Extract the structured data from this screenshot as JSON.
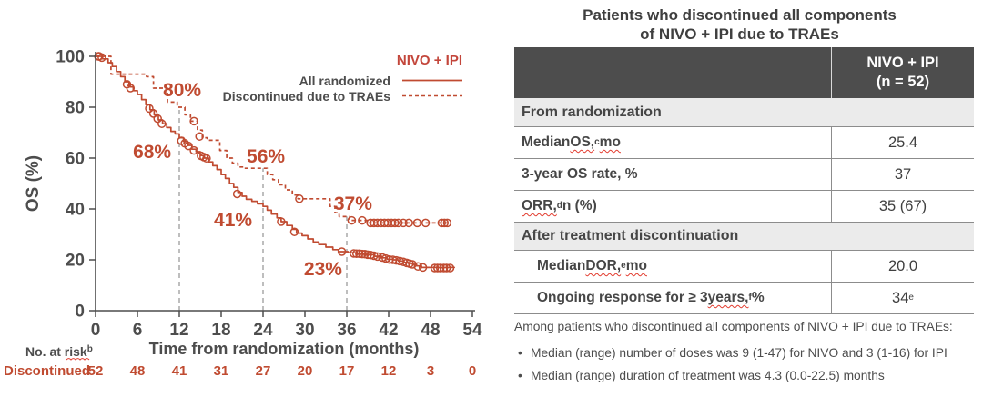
{
  "colors": {
    "accent": "#c04b31",
    "legend_title": "#c3463b",
    "axis_text": "#4d4d4d",
    "ref_line": "#9b9b9b",
    "squiggle": "#e23b2e",
    "header_bg": "#4d4d4d",
    "header_text": "#ffffff",
    "section_bg": "#ebebeb",
    "border": "#8c8c8c",
    "table_text": "#464646"
  },
  "chart_data": {
    "type": "line",
    "subtype": "kaplan-meier",
    "xlabel": "Time from randomization (months)",
    "ylabel": "OS (%)",
    "xlim": [
      0,
      54
    ],
    "ylim": [
      0,
      100
    ],
    "xticks": [
      0,
      6,
      12,
      18,
      24,
      30,
      36,
      42,
      48,
      54
    ],
    "yticks": [
      0,
      20,
      40,
      60,
      80,
      100
    ],
    "grid": false,
    "legend_title": "NIVO + IPI",
    "legend_position": "top-right",
    "series": [
      {
        "name": "All randomized",
        "style": "solid",
        "points": [
          [
            0,
            100
          ],
          [
            1,
            99
          ],
          [
            1.8,
            97.5
          ],
          [
            2.4,
            96
          ],
          [
            3,
            94
          ],
          [
            3.6,
            92
          ],
          [
            4.2,
            90
          ],
          [
            4.8,
            88
          ],
          [
            5.4,
            86.5
          ],
          [
            6,
            85
          ],
          [
            6.6,
            83
          ],
          [
            7.2,
            81
          ],
          [
            7.8,
            79
          ],
          [
            8.4,
            77
          ],
          [
            9,
            75
          ],
          [
            9.6,
            73.5
          ],
          [
            10.2,
            72
          ],
          [
            10.8,
            70.5
          ],
          [
            11.4,
            69.5
          ],
          [
            12,
            68
          ],
          [
            12.6,
            66.5
          ],
          [
            13.2,
            65
          ],
          [
            13.8,
            63.5
          ],
          [
            14.4,
            62.5
          ],
          [
            15,
            61
          ],
          [
            15.6,
            60
          ],
          [
            16.2,
            58.5
          ],
          [
            16.8,
            57
          ],
          [
            17.4,
            55.5
          ],
          [
            18,
            53.5
          ],
          [
            18.6,
            52
          ],
          [
            19.2,
            50
          ],
          [
            19.8,
            48.5
          ],
          [
            20.4,
            46.5
          ],
          [
            21,
            45
          ],
          [
            21.6,
            43.8
          ],
          [
            22.4,
            43
          ],
          [
            23.2,
            42
          ],
          [
            24,
            41
          ],
          [
            24.6,
            39.5
          ],
          [
            25.2,
            38
          ],
          [
            26,
            36.5
          ],
          [
            26.6,
            35
          ],
          [
            27.4,
            33.5
          ],
          [
            28.2,
            32
          ],
          [
            28.8,
            30.5
          ],
          [
            29.6,
            29.5
          ],
          [
            30.4,
            28.2
          ],
          [
            31.2,
            27
          ],
          [
            32,
            26
          ],
          [
            33,
            25
          ],
          [
            34,
            24
          ],
          [
            34.8,
            23.2
          ],
          [
            36.2,
            22.8
          ],
          [
            37.4,
            22.4
          ],
          [
            38.6,
            22
          ],
          [
            40,
            21.4
          ],
          [
            41,
            20.8
          ],
          [
            41.8,
            20.2
          ],
          [
            42.6,
            20
          ],
          [
            43.4,
            19.5
          ],
          [
            44.2,
            19
          ],
          [
            44.8,
            18.6
          ],
          [
            45.4,
            18.2
          ],
          [
            46,
            17.6
          ],
          [
            46.6,
            17
          ],
          [
            51.4,
            16.8
          ]
        ],
        "censors": [
          [
            0.4,
            100
          ],
          [
            0.9,
            99.5
          ],
          [
            4.5,
            89
          ],
          [
            5,
            87.5
          ],
          [
            7.7,
            79.5
          ],
          [
            8.3,
            77.5
          ],
          [
            8.9,
            75.5
          ],
          [
            9.5,
            73.5
          ],
          [
            12.3,
            66.8
          ],
          [
            12.8,
            65.8
          ],
          [
            13.3,
            64.8
          ],
          [
            14.1,
            63
          ],
          [
            15.1,
            60.9
          ],
          [
            15.5,
            60.4
          ],
          [
            15.9,
            59.9
          ],
          [
            20.3,
            45.9
          ],
          [
            26.6,
            35
          ],
          [
            28.5,
            31
          ],
          [
            35.3,
            23.2
          ],
          [
            37,
            22.5
          ],
          [
            37.4,
            22.4
          ],
          [
            37.8,
            22.4
          ],
          [
            38.2,
            22.3
          ],
          [
            38.6,
            22.2
          ],
          [
            39,
            22
          ],
          [
            39.4,
            21.9
          ],
          [
            39.9,
            21.6
          ],
          [
            40.4,
            21.3
          ],
          [
            41.1,
            20.9
          ],
          [
            41.6,
            20.5
          ],
          [
            42.1,
            20.1
          ],
          [
            42.6,
            20
          ],
          [
            43.1,
            19.8
          ],
          [
            43.6,
            19.5
          ],
          [
            44.1,
            19.2
          ],
          [
            44.6,
            18.8
          ],
          [
            45,
            18.5
          ],
          [
            45.4,
            18.2
          ],
          [
            46.2,
            17.4
          ],
          [
            46.9,
            17
          ],
          [
            48.6,
            16.8
          ],
          [
            49,
            16.8
          ],
          [
            49.4,
            16.8
          ],
          [
            49.9,
            16.8
          ],
          [
            50.3,
            16.8
          ],
          [
            50.8,
            16.8
          ]
        ],
        "milestone_values": {
          "12": 68,
          "24": 41,
          "36": 23
        }
      },
      {
        "name": "Discontinued due to TRAEs",
        "style": "dashed",
        "points": [
          [
            0,
            100
          ],
          [
            2.2,
            93
          ],
          [
            7.3,
            92
          ],
          [
            8.3,
            87.5
          ],
          [
            10.3,
            82
          ],
          [
            11.7,
            80
          ],
          [
            12.8,
            77
          ],
          [
            13.6,
            74.5
          ],
          [
            14.6,
            71
          ],
          [
            15.3,
            68
          ],
          [
            16,
            67
          ],
          [
            17.8,
            63
          ],
          [
            18.8,
            60
          ],
          [
            19.6,
            58
          ],
          [
            20.4,
            56.5
          ],
          [
            21.2,
            56
          ],
          [
            24.6,
            53.5
          ],
          [
            25.4,
            51.5
          ],
          [
            26.2,
            49.5
          ],
          [
            27.2,
            47.5
          ],
          [
            28.2,
            45.5
          ],
          [
            29,
            44
          ],
          [
            33.6,
            41
          ],
          [
            34.3,
            38.5
          ],
          [
            34.9,
            37
          ],
          [
            36.4,
            35.5
          ],
          [
            39,
            34.5
          ],
          [
            50.6,
            34.5
          ]
        ],
        "censors": [
          [
            0.5,
            100
          ],
          [
            14.1,
            74.5
          ],
          [
            14.9,
            68.5
          ],
          [
            29.2,
            44
          ],
          [
            36.7,
            35.5
          ],
          [
            38.2,
            35.5
          ],
          [
            39.4,
            34.5
          ],
          [
            39.9,
            34.5
          ],
          [
            40.4,
            34.5
          ],
          [
            40.9,
            34.5
          ],
          [
            41.4,
            34.5
          ],
          [
            41.9,
            34.5
          ],
          [
            42.4,
            34.5
          ],
          [
            42.9,
            34.5
          ],
          [
            43.4,
            34.5
          ],
          [
            44.1,
            34.5
          ],
          [
            44.9,
            34.5
          ],
          [
            46.1,
            34.5
          ],
          [
            47.3,
            34.5
          ],
          [
            49.6,
            34.5
          ],
          [
            50,
            34.5
          ],
          [
            50.4,
            34.5
          ]
        ],
        "milestone_values": {
          "12": 80,
          "24": 56,
          "36": 37
        }
      }
    ],
    "reference_lines": [
      {
        "x": 12,
        "y": 80
      },
      {
        "x": 24,
        "y": 56
      },
      {
        "x": 36,
        "y": 37
      }
    ],
    "annotations": [
      {
        "text": "80%",
        "x": 12.4,
        "y": 86.8
      },
      {
        "text": "68%",
        "x": 8.1,
        "y": 62.5
      },
      {
        "text": "56%",
        "x": 24.4,
        "y": 60.7
      },
      {
        "text": "41%",
        "x": 19.7,
        "y": 35.7
      },
      {
        "text": "37%",
        "x": 36.9,
        "y": 42.1
      },
      {
        "text": "23%",
        "x": 32.6,
        "y": 16.4
      }
    ],
    "at_risk": {
      "header": "No. at risk",
      "header_sup": "b",
      "rows": [
        {
          "label": "Discontinued",
          "values": [
            52,
            48,
            41,
            31,
            27,
            20,
            17,
            12,
            3,
            0
          ]
        }
      ]
    }
  },
  "table": {
    "title_lines": [
      "Patients who discontinued all components",
      "of NIVO + IPI due to TRAEs"
    ],
    "col_header": {
      "lines": [
        "NIVO + IPI",
        "(n = 52)"
      ]
    },
    "rows": [
      {
        "type": "section",
        "label": "From randomization"
      },
      {
        "type": "data",
        "indent": false,
        "label_parts": [
          {
            "t": "Median "
          },
          {
            "t": "OS,",
            "wavy": true
          },
          {
            "t": "c",
            "sup": true
          },
          {
            "t": " "
          },
          {
            "t": "mo",
            "wavy": true
          }
        ],
        "value_parts": [
          {
            "t": "25.4"
          }
        ]
      },
      {
        "type": "data",
        "indent": false,
        "label_parts": [
          {
            "t": "3-year OS rate, %"
          }
        ],
        "value_parts": [
          {
            "t": "37"
          }
        ]
      },
      {
        "type": "data",
        "indent": false,
        "label_parts": [
          {
            "t": "ORR,",
            "wavy": true
          },
          {
            "t": "d",
            "sup": true
          },
          {
            "t": " n (%)"
          }
        ],
        "value_parts": [
          {
            "t": "35 (67)"
          }
        ]
      },
      {
        "type": "section",
        "label": "After treatment discontinuation"
      },
      {
        "type": "data",
        "indent": true,
        "label_parts": [
          {
            "t": "Median "
          },
          {
            "t": "DOR,",
            "wavy": true
          },
          {
            "t": "e",
            "sup": true
          },
          {
            "t": " "
          },
          {
            "t": "mo",
            "wavy": true
          }
        ],
        "value_parts": [
          {
            "t": "20.0"
          }
        ]
      },
      {
        "type": "data",
        "indent": true,
        "label_parts": [
          {
            "t": "Ongoing response for ≥ 3 "
          },
          {
            "t": "years,",
            "wavy": true
          },
          {
            "t": "f",
            "sup": true
          },
          {
            "t": " %"
          }
        ],
        "value_parts": [
          {
            "t": "34"
          },
          {
            "t": "e",
            "sup": true
          }
        ]
      }
    ]
  },
  "notes": {
    "intro": "Among patients who discontinued all components of NIVO + IPI due to TRAEs:",
    "bullets": [
      "Median (range) number of doses was 9 (1-47) for NIVO and 3 (1-16) for IPI",
      "Median (range) duration of treatment was 4.3 (0.0-22.5) months"
    ]
  }
}
